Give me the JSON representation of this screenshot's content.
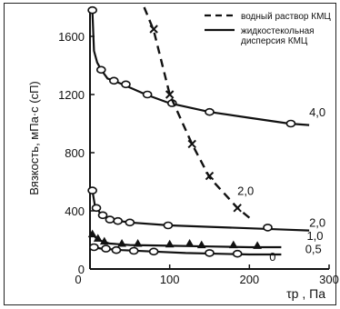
{
  "chart_data": {
    "type": "line",
    "xlabel": "τр , Па",
    "ylabel": "Вязкость, мПа·с (сП)",
    "xlim": [
      0,
      300
    ],
    "ylim": [
      0,
      1800
    ],
    "x_ticks": [
      "0",
      "100",
      "200",
      "300"
    ],
    "y_ticks": [
      "0",
      "400",
      "800",
      "1200",
      "1600"
    ],
    "grid": false,
    "legend_position": "top-right",
    "legend": [
      {
        "label": "водный раствор КМЦ",
        "style": "dashed"
      },
      {
        "label": "жидкостекольная дисперсия КМЦ",
        "style": "solid"
      }
    ],
    "series": [
      {
        "name": "4,0",
        "style": "solid",
        "marker": "circle",
        "points": [
          [
            3,
            1780
          ],
          [
            5,
            1500
          ],
          [
            9,
            1420
          ],
          [
            14,
            1370
          ],
          [
            22,
            1310
          ],
          [
            30,
            1295
          ],
          [
            45,
            1260
          ],
          [
            70,
            1200
          ],
          [
            100,
            1140
          ],
          [
            150,
            1080
          ],
          [
            200,
            1040
          ],
          [
            250,
            1000
          ],
          [
            275,
            990
          ]
        ],
        "markers": [
          [
            3,
            1780
          ],
          [
            14,
            1370
          ],
          [
            30,
            1295
          ],
          [
            45,
            1270
          ],
          [
            72,
            1200
          ],
          [
            103,
            1140
          ],
          [
            150,
            1080
          ],
          [
            252,
            1000
          ]
        ]
      },
      {
        "name": "2,0",
        "style": "solid",
        "marker": "circle",
        "points": [
          [
            3,
            540
          ],
          [
            6,
            440
          ],
          [
            12,
            390
          ],
          [
            25,
            340
          ],
          [
            50,
            320
          ],
          [
            100,
            300
          ],
          [
            150,
            290
          ],
          [
            200,
            280
          ],
          [
            250,
            270
          ],
          [
            275,
            265
          ]
        ],
        "markers": [
          [
            3,
            540
          ],
          [
            8,
            420
          ],
          [
            16,
            370
          ],
          [
            25,
            340
          ],
          [
            35,
            330
          ],
          [
            50,
            320
          ],
          [
            98,
            300
          ],
          [
            223,
            285
          ]
        ]
      },
      {
        "name": "1,0",
        "style": "solid",
        "marker": "triangle",
        "points": [
          [
            3,
            240
          ],
          [
            10,
            200
          ],
          [
            25,
            175
          ],
          [
            50,
            165
          ],
          [
            100,
            160
          ],
          [
            150,
            155
          ],
          [
            200,
            150
          ],
          [
            240,
            150
          ]
        ],
        "markers": [
          [
            3,
            240
          ],
          [
            10,
            210
          ],
          [
            18,
            190
          ],
          [
            40,
            175
          ],
          [
            60,
            175
          ],
          [
            100,
            170
          ],
          [
            125,
            175
          ],
          [
            140,
            165
          ],
          [
            180,
            165
          ],
          [
            210,
            160
          ]
        ]
      },
      {
        "name": "0,5",
        "style": "solid",
        "marker": "circle",
        "points": [
          [
            3,
            150
          ],
          [
            15,
            140
          ],
          [
            40,
            130
          ],
          [
            80,
            120
          ],
          [
            120,
            110
          ],
          [
            160,
            105
          ],
          [
            200,
            100
          ],
          [
            240,
            100
          ]
        ],
        "markers": [
          [
            5,
            150
          ],
          [
            20,
            140
          ],
          [
            33,
            130
          ],
          [
            55,
            125
          ],
          [
            80,
            120
          ],
          [
            150,
            110
          ],
          [
            185,
            105
          ]
        ]
      },
      {
        "name": "2,0",
        "style": "dashed",
        "marker": "x",
        "points": [
          [
            68,
            1800
          ],
          [
            80,
            1640
          ],
          [
            100,
            1200
          ],
          [
            128,
            860
          ],
          [
            150,
            630
          ],
          [
            185,
            420
          ],
          [
            205,
            330
          ]
        ],
        "markers": [
          [
            80,
            1650
          ],
          [
            100,
            1200
          ],
          [
            128,
            860
          ],
          [
            150,
            640
          ],
          [
            185,
            420
          ]
        ]
      }
    ],
    "curve_labels": [
      {
        "text": "4,0",
        "x": 275,
        "y": 1050
      },
      {
        "text": "2,0",
        "x": 185,
        "y": 510
      },
      {
        "text": "2,0",
        "x": 275,
        "y": 290
      },
      {
        "text": "1,0",
        "x": 272,
        "y": 200
      },
      {
        "text": "0,5",
        "x": 270,
        "y": 110
      },
      {
        "text": "0",
        "x": 225,
        "y": 55
      }
    ]
  }
}
